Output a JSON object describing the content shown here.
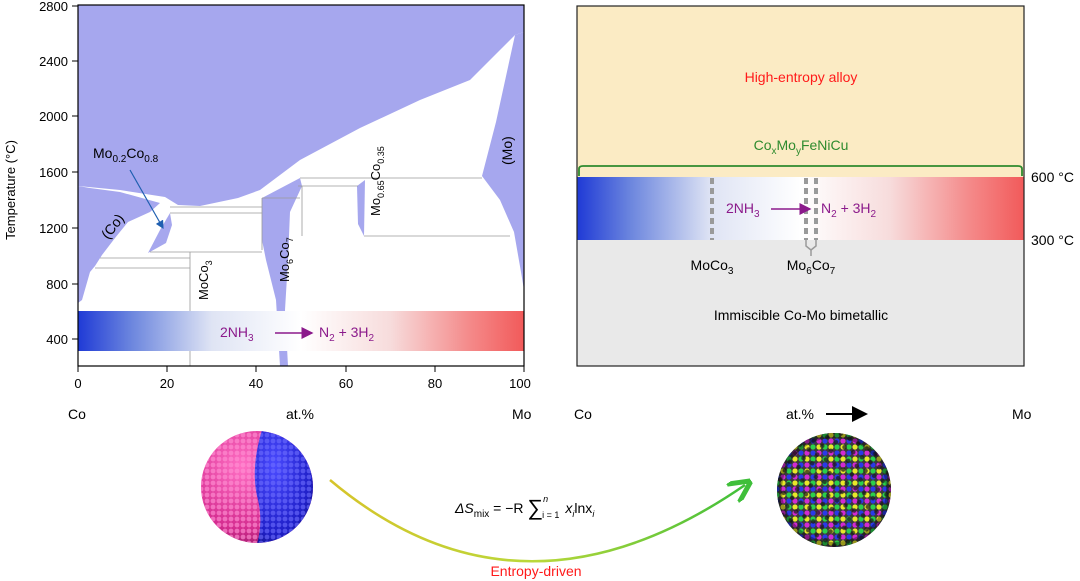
{
  "phase_diagram": {
    "y_axis_label": "Temperature (°C)",
    "y_ticks": [
      "400",
      "800",
      "1200",
      "1600",
      "2000",
      "2400",
      "2800"
    ],
    "x_ticks": [
      "0",
      "20",
      "40",
      "60",
      "80",
      "100"
    ],
    "x_left_label": "Co",
    "x_mid_label": "at.%",
    "x_right_label": "Mo",
    "phase_labels": {
      "co_region": "(Co)",
      "mo_region": "(Mo)",
      "mo02co08_base": "Mo",
      "mo02co08_sub1": "0.2",
      "mo02co08_mid": "Co",
      "mo02co08_sub2": "0.8",
      "moco3_base": "MoCo",
      "moco3_sub": "3",
      "mo6co7_base1": "Mo",
      "mo6co7_sub1": "6",
      "mo6co7_base2": "Co",
      "mo6co7_sub2": "7",
      "mo065_base1": "Mo",
      "mo065_sub1": "0.65",
      "mo065_base2": "Co",
      "mo065_sub2": "0.35"
    },
    "reaction": {
      "lhs": "2NH",
      "lhs_sub": "3",
      "rhs_a": "N",
      "rhs_a_sub": "2",
      "rhs_b": " + 3H",
      "rhs_b_sub": "2"
    }
  },
  "schematic": {
    "hea_label": "High-entropy alloy",
    "composition": {
      "a": "Co",
      "a_sub": "x",
      "b": "Mo",
      "b_sub": "y",
      "c": "FeNiCu"
    },
    "temp_high": "600 °C",
    "temp_low": "300 °C",
    "moco3": {
      "base": "MoCo",
      "sub": "3"
    },
    "mo6co7": {
      "a": "Mo",
      "a_sub": "6",
      "b": "Co",
      "b_sub": "7"
    },
    "immiscible_label": "Immiscible Co-Mo bimetallic",
    "x_left_label": "Co",
    "x_mid_label": "at.%",
    "x_right_label": "Mo"
  },
  "bottom": {
    "equation": {
      "delta": "ΔS",
      "delta_sub": "mix",
      "equals": " = −R ",
      "sigma": "∑",
      "sup_n": "n",
      "sub_i": "i = 1",
      "term_x": "x",
      "term_i": "i",
      "term_ln": "lnx",
      "term_i2": "i"
    },
    "arrow_label": "Entropy-driven"
  },
  "colors": {
    "phase_fill": "#a6a7ee",
    "gradient_start": "#1f3ad6",
    "gradient_end": "#f25a5a",
    "hea_band": "#fbebc4",
    "immiscible_band": "#e9e9e9",
    "reaction_purple": "#8b1a8b",
    "hea_text": "#ff1a1a",
    "composition_green": "#2e8b2e"
  }
}
